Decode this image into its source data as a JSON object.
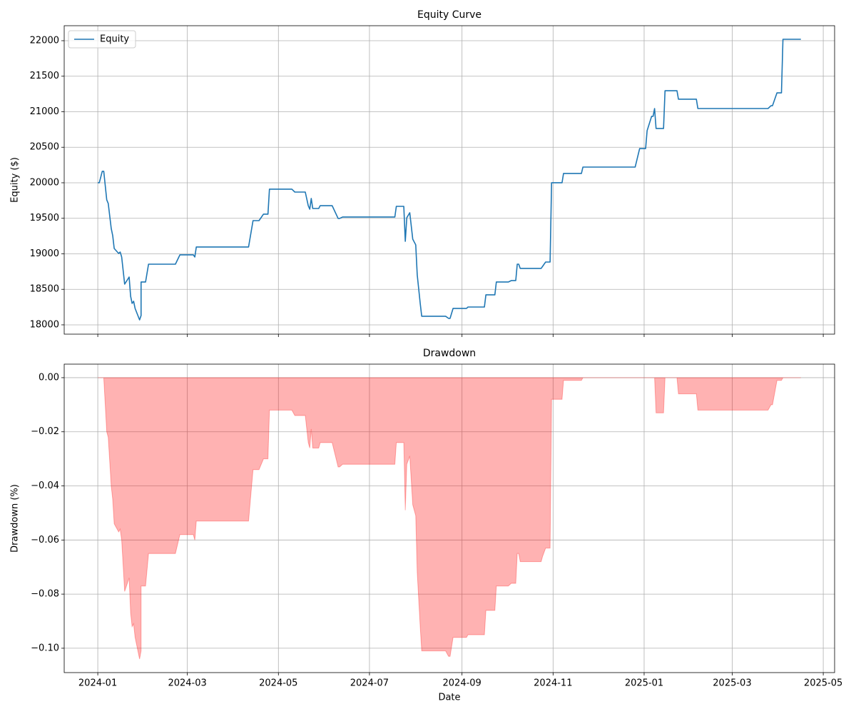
{
  "chart_data": [
    {
      "type": "line",
      "title": "Equity Curve",
      "y_label": "Equity ($)",
      "x": [
        19723,
        19724,
        19726,
        19727,
        19729,
        19730,
        19732,
        19733,
        19734,
        19737,
        19738,
        19739,
        19741,
        19744,
        19745,
        19746,
        19747,
        19748,
        19751,
        19752,
        19752,
        19755,
        19757,
        19775,
        19778,
        19787,
        19788,
        19789,
        19824,
        19827,
        19831,
        19834,
        19837,
        19838,
        19853,
        19855,
        19862,
        19864,
        19865,
        19866,
        19867,
        19871,
        19872,
        19880,
        19884,
        19885,
        19887,
        19922,
        19923,
        19928,
        19929,
        19930,
        19932,
        19934,
        19936,
        19937,
        19939,
        19940,
        19956,
        19958,
        19959,
        19961,
        19970,
        19971,
        19982,
        19983,
        19989,
        19990,
        19998,
        20000,
        20003,
        20004,
        20005,
        20006,
        20020,
        20021,
        20023,
        20026,
        20027,
        20034,
        20035,
        20047,
        20048,
        20083,
        20086,
        20090,
        20091,
        20094,
        20095,
        20096,
        20097,
        20102,
        20103,
        20111,
        20112,
        20124,
        20125,
        20172,
        20174,
        20175,
        20178,
        20181,
        20182,
        20194
      ],
      "series": [
        {
          "name": "Equity",
          "color": "#1f77b4",
          "values": [
            20000,
            20000,
            20161,
            20161,
            19759,
            19709,
            19357,
            19256,
            19075,
            19005,
            19025,
            18955,
            18573,
            18673,
            18402,
            18302,
            18332,
            18231,
            18070,
            18131,
            18603,
            18603,
            18854,
            18854,
            18985,
            18985,
            18955,
            19096,
            19096,
            19467,
            19467,
            19558,
            19558,
            19910,
            19910,
            19869,
            19869,
            19678,
            19628,
            19779,
            19638,
            19638,
            19678,
            19678,
            19498,
            19498,
            19518,
            19518,
            19668,
            19668,
            19176,
            19508,
            19578,
            19206,
            19126,
            18704,
            18302,
            18121,
            18121,
            18091,
            18091,
            18231,
            18231,
            18251,
            18251,
            18422,
            18422,
            18603,
            18603,
            18623,
            18623,
            18854,
            18854,
            18794,
            18794,
            18824,
            18884,
            18884,
            20000,
            20000,
            20131,
            20131,
            20221,
            20221,
            20482,
            20482,
            20734,
            20935,
            20935,
            21045,
            20764,
            20764,
            21296,
            21296,
            21176,
            21176,
            21045,
            21045,
            21085,
            21085,
            21266,
            21266,
            22020,
            22020
          ]
        }
      ],
      "xlim": [
        19700.5,
        20216.6
      ],
      "ylim": [
        17869,
        22211
      ],
      "yticks": [
        18000,
        18500,
        19000,
        19500,
        20000,
        20500,
        21000,
        21500,
        22000
      ],
      "grid": true,
      "legend": "upper left"
    },
    {
      "type": "area",
      "title": "Drawdown",
      "x_label": "Date",
      "y_label": "Drawdown (%)",
      "color": "#ff0000",
      "x": [
        19723,
        19724,
        19726,
        19727,
        19729,
        19730,
        19732,
        19733,
        19734,
        19737,
        19738,
        19739,
        19741,
        19744,
        19745,
        19746,
        19747,
        19748,
        19751,
        19752,
        19752,
        19755,
        19757,
        19775,
        19778,
        19787,
        19788,
        19789,
        19824,
        19827,
        19831,
        19834,
        19837,
        19838,
        19853,
        19855,
        19862,
        19864,
        19865,
        19866,
        19867,
        19871,
        19872,
        19880,
        19884,
        19885,
        19887,
        19922,
        19923,
        19928,
        19929,
        19930,
        19932,
        19934,
        19936,
        19937,
        19939,
        19940,
        19956,
        19958,
        19959,
        19961,
        19970,
        19971,
        19982,
        19983,
        19989,
        19990,
        19998,
        20000,
        20003,
        20004,
        20005,
        20006,
        20020,
        20021,
        20023,
        20026,
        20027,
        20034,
        20035,
        20047,
        20048,
        20083,
        20086,
        20090,
        20091,
        20094,
        20095,
        20096,
        20097,
        20102,
        20103,
        20111,
        20112,
        20124,
        20125,
        20172,
        20174,
        20175,
        20178,
        20181,
        20182,
        20194
      ],
      "values": [
        0,
        0,
        0,
        0,
        -0.02,
        -0.022,
        -0.04,
        -0.045,
        -0.054,
        -0.057,
        -0.056,
        -0.06,
        -0.079,
        -0.074,
        -0.087,
        -0.092,
        -0.091,
        -0.096,
        -0.104,
        -0.101,
        -0.077,
        -0.077,
        -0.065,
        -0.065,
        -0.058,
        -0.058,
        -0.06,
        -0.053,
        -0.053,
        -0.034,
        -0.034,
        -0.03,
        -0.03,
        -0.012,
        -0.012,
        -0.014,
        -0.014,
        -0.024,
        -0.026,
        -0.019,
        -0.026,
        -0.026,
        -0.024,
        -0.024,
        -0.033,
        -0.033,
        -0.032,
        -0.032,
        -0.024,
        -0.024,
        -0.049,
        -0.032,
        -0.029,
        -0.047,
        -0.051,
        -0.072,
        -0.092,
        -0.101,
        -0.101,
        -0.103,
        -0.103,
        -0.096,
        -0.096,
        -0.095,
        -0.095,
        -0.086,
        -0.086,
        -0.077,
        -0.077,
        -0.076,
        -0.076,
        -0.065,
        -0.065,
        -0.068,
        -0.068,
        -0.066,
        -0.063,
        -0.063,
        -0.008,
        -0.008,
        -0.001,
        -0.001,
        0,
        0,
        0,
        0,
        0,
        0,
        0,
        0,
        -0.013,
        -0.013,
        0,
        0,
        -0.006,
        -0.006,
        -0.012,
        -0.012,
        -0.01,
        -0.01,
        -0.001,
        -0.001,
        0,
        0
      ],
      "xlim": [
        19700.5,
        20216.6
      ],
      "xticks": [
        {
          "value": 19723,
          "label": "2024-01"
        },
        {
          "value": 19783,
          "label": "2024-03"
        },
        {
          "value": 19844,
          "label": "2024-05"
        },
        {
          "value": 19905,
          "label": "2024-07"
        },
        {
          "value": 19967,
          "label": "2024-09"
        },
        {
          "value": 20028,
          "label": "2024-11"
        },
        {
          "value": 20089,
          "label": "2025-01"
        },
        {
          "value": 20148,
          "label": "2025-03"
        },
        {
          "value": 20209,
          "label": "2025-05"
        }
      ],
      "ylim": [
        -0.109,
        0.005
      ],
      "yticks": [
        {
          "value": -0.1,
          "label": "−0.10"
        },
        {
          "value": -0.08,
          "label": "−0.08"
        },
        {
          "value": -0.06,
          "label": "−0.06"
        },
        {
          "value": -0.04,
          "label": "−0.04"
        },
        {
          "value": -0.02,
          "label": "−0.02"
        },
        {
          "value": 0,
          "label": "0.00"
        }
      ],
      "grid": true
    }
  ]
}
